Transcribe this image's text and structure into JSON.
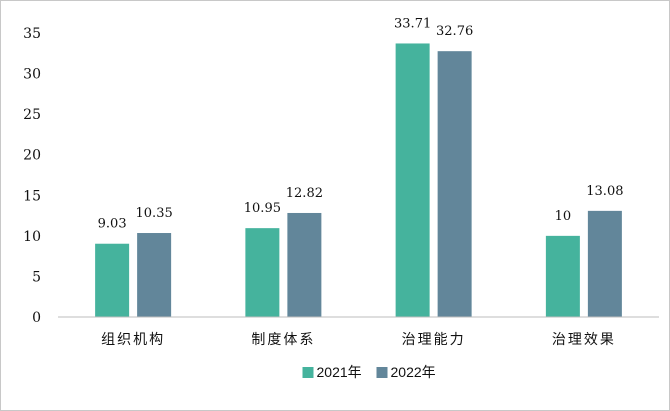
{
  "chart_data": {
    "type": "bar",
    "title": "",
    "xlabel": "",
    "ylabel": "",
    "categories": [
      "组织机构",
      "制度体系",
      "治理能力",
      "治理效果"
    ],
    "series": [
      {
        "name": "2021年",
        "color": "#45b39d",
        "values": [
          9.03,
          10.95,
          33.71,
          10
        ]
      },
      {
        "name": "2022年",
        "color": "#62869a",
        "values": [
          10.35,
          12.82,
          32.76,
          13.08
        ]
      }
    ],
    "value_labels": [
      [
        "9.03",
        "10.95",
        "33.71",
        "10"
      ],
      [
        "10.35",
        "12.82",
        "32.76",
        "13.08"
      ]
    ],
    "ylim": [
      0,
      35
    ],
    "yticks": [
      0,
      5,
      10,
      15,
      20,
      25,
      30,
      35
    ],
    "grid": false,
    "legend_position": "bottom-center"
  }
}
